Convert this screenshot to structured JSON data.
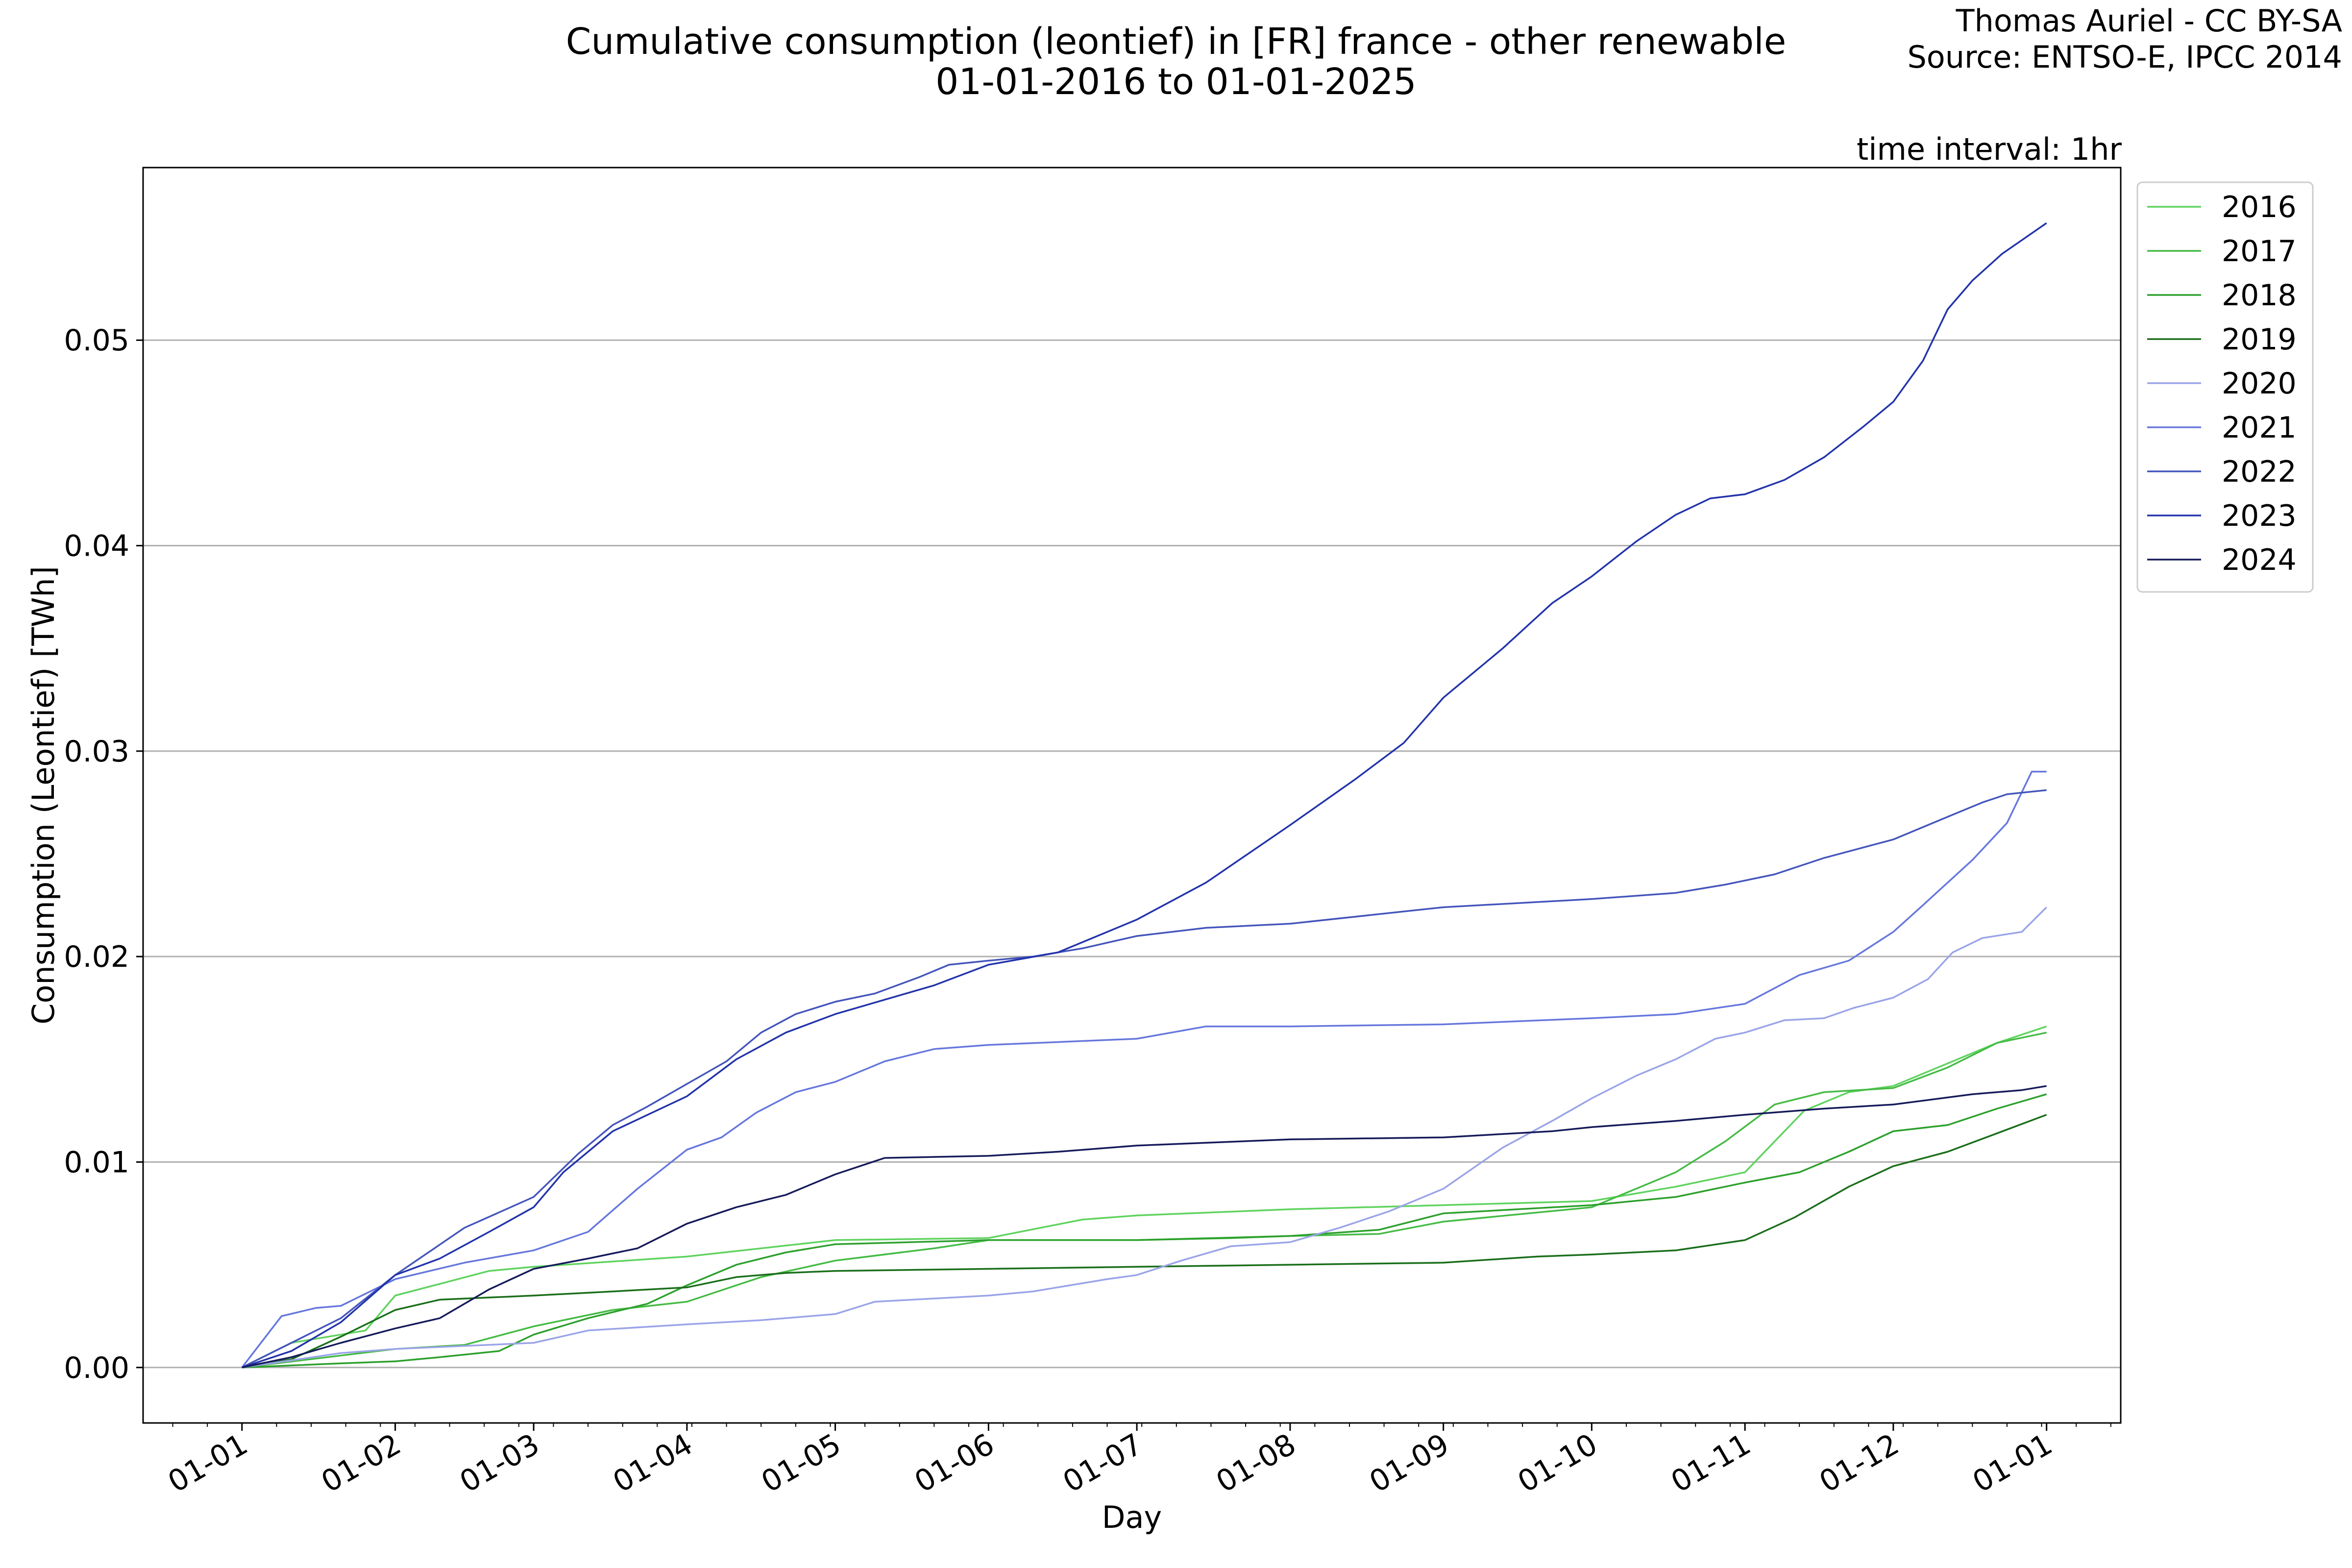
{
  "header": {
    "title_line1": "Cumulative consumption (leontief) in [FR] france - other renewable",
    "title_line2": "01-01-2016 to 01-01-2025",
    "credit_line1": "Thomas Auriel - CC BY-SA",
    "credit_line2": "Source: ENTSO-E, IPCC 2014",
    "interval": "time interval: 1hr"
  },
  "chart_data": {
    "type": "line",
    "xlabel": "Day",
    "ylabel": "Consumption (Leontief) [TWh]",
    "x_unit": "day of year",
    "xlim": [
      -20,
      380
    ],
    "ylim": [
      -0.0027,
      0.0584
    ],
    "grid": "horizontal",
    "legend_position": "upper right outside",
    "x_ticks": [
      {
        "label": "01-01",
        "day": 0
      },
      {
        "label": "01-02",
        "day": 31
      },
      {
        "label": "01-03",
        "day": 59
      },
      {
        "label": "01-04",
        "day": 90
      },
      {
        "label": "01-05",
        "day": 120
      },
      {
        "label": "01-06",
        "day": 151
      },
      {
        "label": "01-07",
        "day": 181
      },
      {
        "label": "01-08",
        "day": 212
      },
      {
        "label": "01-09",
        "day": 243
      },
      {
        "label": "01-10",
        "day": 273
      },
      {
        "label": "01-11",
        "day": 304
      },
      {
        "label": "01-12",
        "day": 334
      },
      {
        "label": "01-01",
        "day": 365
      }
    ],
    "y_ticks": [
      {
        "label": "0.00",
        "value": 0.0
      },
      {
        "label": "0.01",
        "value": 0.01
      },
      {
        "label": "0.02",
        "value": 0.02
      },
      {
        "label": "0.03",
        "value": 0.03
      },
      {
        "label": "0.04",
        "value": 0.04
      },
      {
        "label": "0.05",
        "value": 0.05
      }
    ],
    "series": [
      {
        "name": "2016",
        "color": "#5fd35f",
        "points": [
          [
            0,
            0
          ],
          [
            10,
            0.0012
          ],
          [
            25,
            0.0018
          ],
          [
            31,
            0.0035
          ],
          [
            50,
            0.0047
          ],
          [
            59,
            0.0049
          ],
          [
            90,
            0.0054
          ],
          [
            120,
            0.0062
          ],
          [
            151,
            0.0063
          ],
          [
            170,
            0.0072
          ],
          [
            181,
            0.0074
          ],
          [
            212,
            0.0077
          ],
          [
            243,
            0.0079
          ],
          [
            273,
            0.0081
          ],
          [
            290,
            0.0088
          ],
          [
            304,
            0.0095
          ],
          [
            316,
            0.0125
          ],
          [
            325,
            0.0134
          ],
          [
            334,
            0.0137
          ],
          [
            345,
            0.0148
          ],
          [
            355,
            0.0158
          ],
          [
            365,
            0.0166
          ]
        ]
      },
      {
        "name": "2017",
        "color": "#44bb44",
        "points": [
          [
            0,
            0
          ],
          [
            31,
            0.0009
          ],
          [
            45,
            0.0011
          ],
          [
            59,
            0.002
          ],
          [
            75,
            0.0028
          ],
          [
            90,
            0.0032
          ],
          [
            105,
            0.0044
          ],
          [
            120,
            0.0052
          ],
          [
            140,
            0.0058
          ],
          [
            151,
            0.0062
          ],
          [
            181,
            0.0062
          ],
          [
            212,
            0.0064
          ],
          [
            230,
            0.0065
          ],
          [
            243,
            0.0071
          ],
          [
            273,
            0.0078
          ],
          [
            290,
            0.0095
          ],
          [
            300,
            0.011
          ],
          [
            310,
            0.0128
          ],
          [
            320,
            0.0134
          ],
          [
            334,
            0.0136
          ],
          [
            345,
            0.0146
          ],
          [
            355,
            0.0158
          ],
          [
            365,
            0.0163
          ]
        ]
      },
      {
        "name": "2018",
        "color": "#2ca02c",
        "points": [
          [
            0,
            0
          ],
          [
            20,
            0.0002
          ],
          [
            31,
            0.0003
          ],
          [
            40,
            0.0005
          ],
          [
            52,
            0.0008
          ],
          [
            59,
            0.0016
          ],
          [
            70,
            0.0024
          ],
          [
            82,
            0.0031
          ],
          [
            90,
            0.004
          ],
          [
            100,
            0.005
          ],
          [
            110,
            0.0056
          ],
          [
            120,
            0.006
          ],
          [
            151,
            0.0062
          ],
          [
            181,
            0.0062
          ],
          [
            200,
            0.0063
          ],
          [
            212,
            0.0064
          ],
          [
            230,
            0.0067
          ],
          [
            243,
            0.0075
          ],
          [
            273,
            0.0079
          ],
          [
            290,
            0.0083
          ],
          [
            304,
            0.009
          ],
          [
            315,
            0.0095
          ],
          [
            325,
            0.0105
          ],
          [
            334,
            0.0115
          ],
          [
            345,
            0.0118
          ],
          [
            355,
            0.0126
          ],
          [
            365,
            0.0133
          ]
        ]
      },
      {
        "name": "2019",
        "color": "#1a6e1a",
        "points": [
          [
            0,
            0
          ],
          [
            10,
            0.0004
          ],
          [
            20,
            0.0015
          ],
          [
            31,
            0.0028
          ],
          [
            40,
            0.0033
          ],
          [
            59,
            0.0035
          ],
          [
            75,
            0.0037
          ],
          [
            90,
            0.0039
          ],
          [
            100,
            0.0044
          ],
          [
            110,
            0.0046
          ],
          [
            120,
            0.0047
          ],
          [
            151,
            0.0048
          ],
          [
            181,
            0.0049
          ],
          [
            212,
            0.005
          ],
          [
            243,
            0.0051
          ],
          [
            262,
            0.0054
          ],
          [
            273,
            0.0055
          ],
          [
            290,
            0.0057
          ],
          [
            304,
            0.0062
          ],
          [
            314,
            0.0073
          ],
          [
            325,
            0.0088
          ],
          [
            334,
            0.0098
          ],
          [
            345,
            0.0105
          ],
          [
            355,
            0.0114
          ],
          [
            365,
            0.0123
          ]
        ]
      },
      {
        "name": "2020",
        "color": "#9aa4e8",
        "points": [
          [
            0,
            0
          ],
          [
            20,
            0.0007
          ],
          [
            31,
            0.0009
          ],
          [
            59,
            0.0012
          ],
          [
            70,
            0.0018
          ],
          [
            90,
            0.0021
          ],
          [
            105,
            0.0023
          ],
          [
            120,
            0.0026
          ],
          [
            128,
            0.0032
          ],
          [
            151,
            0.0035
          ],
          [
            160,
            0.0037
          ],
          [
            175,
            0.0043
          ],
          [
            181,
            0.0045
          ],
          [
            190,
            0.0052
          ],
          [
            200,
            0.0059
          ],
          [
            212,
            0.0061
          ],
          [
            222,
            0.0068
          ],
          [
            232,
            0.0076
          ],
          [
            243,
            0.0087
          ],
          [
            255,
            0.0107
          ],
          [
            265,
            0.012
          ],
          [
            273,
            0.0131
          ],
          [
            282,
            0.0142
          ],
          [
            290,
            0.015
          ],
          [
            298,
            0.016
          ],
          [
            304,
            0.0163
          ],
          [
            312,
            0.0169
          ],
          [
            320,
            0.017
          ],
          [
            326,
            0.0175
          ],
          [
            334,
            0.018
          ],
          [
            341,
            0.0189
          ],
          [
            346,
            0.0202
          ],
          [
            352,
            0.0209
          ],
          [
            360,
            0.0212
          ],
          [
            365,
            0.0224
          ]
        ]
      },
      {
        "name": "2021",
        "color": "#6677dd",
        "points": [
          [
            0,
            0
          ],
          [
            8,
            0.0025
          ],
          [
            15,
            0.0029
          ],
          [
            20,
            0.003
          ],
          [
            31,
            0.0043
          ],
          [
            45,
            0.0051
          ],
          [
            59,
            0.0057
          ],
          [
            70,
            0.0066
          ],
          [
            80,
            0.0087
          ],
          [
            90,
            0.0106
          ],
          [
            97,
            0.0112
          ],
          [
            104,
            0.0124
          ],
          [
            112,
            0.0134
          ],
          [
            120,
            0.0139
          ],
          [
            130,
            0.0149
          ],
          [
            140,
            0.0155
          ],
          [
            151,
            0.0157
          ],
          [
            181,
            0.016
          ],
          [
            195,
            0.0166
          ],
          [
            212,
            0.0166
          ],
          [
            243,
            0.0167
          ],
          [
            263,
            0.0169
          ],
          [
            273,
            0.017
          ],
          [
            290,
            0.0172
          ],
          [
            304,
            0.0177
          ],
          [
            315,
            0.0191
          ],
          [
            325,
            0.0198
          ],
          [
            334,
            0.0212
          ],
          [
            340,
            0.0225
          ],
          [
            350,
            0.0247
          ],
          [
            357,
            0.0265
          ],
          [
            362,
            0.029
          ],
          [
            365,
            0.029
          ]
        ]
      },
      {
        "name": "2022",
        "color": "#4455bb",
        "points": [
          [
            0,
            0
          ],
          [
            10,
            0.0012
          ],
          [
            20,
            0.0024
          ],
          [
            31,
            0.0045
          ],
          [
            45,
            0.0068
          ],
          [
            59,
            0.0083
          ],
          [
            68,
            0.0104
          ],
          [
            75,
            0.0118
          ],
          [
            82,
            0.0127
          ],
          [
            90,
            0.0138
          ],
          [
            98,
            0.0149
          ],
          [
            105,
            0.0163
          ],
          [
            112,
            0.0172
          ],
          [
            120,
            0.0178
          ],
          [
            128,
            0.0182
          ],
          [
            137,
            0.019
          ],
          [
            143,
            0.0196
          ],
          [
            151,
            0.0198
          ],
          [
            160,
            0.02
          ],
          [
            170,
            0.0204
          ],
          [
            181,
            0.021
          ],
          [
            195,
            0.0214
          ],
          [
            212,
            0.0216
          ],
          [
            243,
            0.0224
          ],
          [
            273,
            0.0228
          ],
          [
            290,
            0.0231
          ],
          [
            300,
            0.0235
          ],
          [
            310,
            0.024
          ],
          [
            320,
            0.0248
          ],
          [
            334,
            0.0257
          ],
          [
            345,
            0.0268
          ],
          [
            352,
            0.0275
          ],
          [
            357,
            0.0279
          ],
          [
            365,
            0.0281
          ]
        ]
      },
      {
        "name": "2023",
        "color": "#2233aa",
        "points": [
          [
            0,
            0
          ],
          [
            10,
            0.0008
          ],
          [
            20,
            0.0022
          ],
          [
            31,
            0.0045
          ],
          [
            40,
            0.0053
          ],
          [
            50,
            0.0066
          ],
          [
            59,
            0.0078
          ],
          [
            65,
            0.0095
          ],
          [
            75,
            0.0115
          ],
          [
            90,
            0.0132
          ],
          [
            100,
            0.015
          ],
          [
            110,
            0.0163
          ],
          [
            120,
            0.0172
          ],
          [
            130,
            0.0179
          ],
          [
            140,
            0.0186
          ],
          [
            151,
            0.0196
          ],
          [
            165,
            0.0202
          ],
          [
            181,
            0.0218
          ],
          [
            195,
            0.0236
          ],
          [
            212,
            0.0264
          ],
          [
            225,
            0.0286
          ],
          [
            235,
            0.0304
          ],
          [
            243,
            0.0326
          ],
          [
            255,
            0.035
          ],
          [
            265,
            0.0372
          ],
          [
            273,
            0.0385
          ],
          [
            282,
            0.0402
          ],
          [
            290,
            0.0415
          ],
          [
            297,
            0.0423
          ],
          [
            304,
            0.0425
          ],
          [
            312,
            0.0432
          ],
          [
            320,
            0.0443
          ],
          [
            328,
            0.0458
          ],
          [
            334,
            0.047
          ],
          [
            340,
            0.049
          ],
          [
            345,
            0.0515
          ],
          [
            350,
            0.0529
          ],
          [
            356,
            0.0542
          ],
          [
            365,
            0.0557
          ]
        ]
      },
      {
        "name": "2024",
        "color": "#151a5a",
        "points": [
          [
            0,
            0
          ],
          [
            10,
            0.0005
          ],
          [
            20,
            0.0012
          ],
          [
            31,
            0.0019
          ],
          [
            40,
            0.0024
          ],
          [
            50,
            0.0038
          ],
          [
            59,
            0.0048
          ],
          [
            70,
            0.0053
          ],
          [
            80,
            0.0058
          ],
          [
            90,
            0.007
          ],
          [
            100,
            0.0078
          ],
          [
            110,
            0.0084
          ],
          [
            120,
            0.0094
          ],
          [
            130,
            0.0102
          ],
          [
            151,
            0.0103
          ],
          [
            165,
            0.0105
          ],
          [
            181,
            0.0108
          ],
          [
            212,
            0.0111
          ],
          [
            243,
            0.0112
          ],
          [
            265,
            0.0115
          ],
          [
            273,
            0.0117
          ],
          [
            290,
            0.012
          ],
          [
            304,
            0.0123
          ],
          [
            320,
            0.0126
          ],
          [
            334,
            0.0128
          ],
          [
            350,
            0.0133
          ],
          [
            360,
            0.0135
          ],
          [
            365,
            0.0137
          ]
        ]
      }
    ]
  }
}
